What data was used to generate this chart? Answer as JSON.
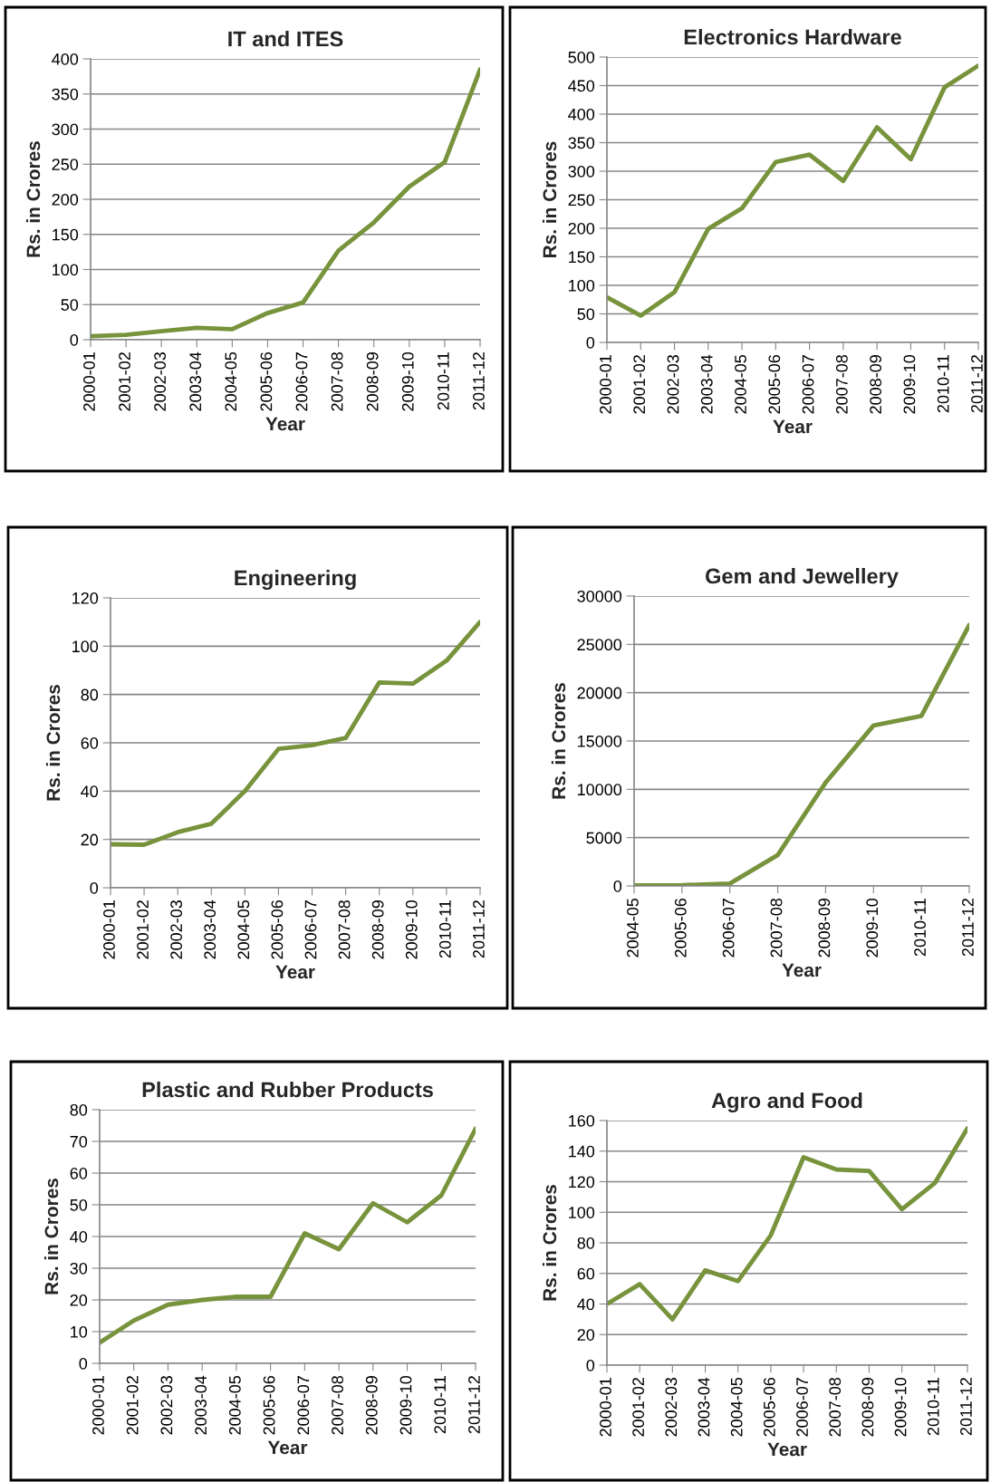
{
  "chart_data": [
    {
      "type": "line",
      "title": "IT and ITES",
      "xlabel": "Year",
      "ylabel": "Rs. in Crores",
      "categories": [
        "2000-01",
        "2001-02",
        "2002-03",
        "2003-04",
        "2004-05",
        "2005-06",
        "2006-07",
        "2007-08",
        "2008-09",
        "2009-10",
        "2010-11",
        "2011-12"
      ],
      "series": [
        {
          "color": "#77933c",
          "values": [
            5,
            7,
            12,
            17,
            15,
            38,
            53,
            127,
            167,
            218,
            253,
            385
          ]
        }
      ],
      "ylim": [
        0,
        400
      ],
      "yticks": [
        0,
        50,
        100,
        150,
        200,
        250,
        300,
        350,
        400
      ],
      "grid": "y",
      "legend": false,
      "marker": "none",
      "line_style": "solid"
    },
    {
      "type": "line",
      "title": "Electronics Hardware",
      "xlabel": "Year",
      "ylabel": "Rs. in Crores",
      "categories": [
        "2000-01",
        "2001-02",
        "2002-03",
        "2003-04",
        "2004-05",
        "2005-06",
        "2006-07",
        "2007-08",
        "2008-09",
        "2009-10",
        "2010-11",
        "2011-12"
      ],
      "series": [
        {
          "color": "#77933c",
          "values": [
            79,
            47,
            88,
            199,
            235,
            316,
            329,
            283,
            377,
            321,
            447,
            485
          ]
        }
      ],
      "ylim": [
        0,
        500
      ],
      "yticks": [
        0,
        50,
        100,
        150,
        200,
        250,
        300,
        350,
        400,
        450,
        500
      ],
      "grid": "y",
      "legend": false,
      "marker": "none",
      "line_style": "solid"
    },
    {
      "type": "line",
      "title": "Engineering",
      "xlabel": "Year",
      "ylabel": "Rs. in Crores",
      "categories": [
        "2000-01",
        "2001-02",
        "2002-03",
        "2003-04",
        "2004-05",
        "2005-06",
        "2006-07",
        "2007-08",
        "2008-09",
        "2009-10",
        "2010-11",
        "2011-12"
      ],
      "series": [
        {
          "color": "#77933c",
          "values": [
            18,
            17.8,
            23,
            26.5,
            40,
            57.5,
            59,
            62,
            85,
            84.5,
            94,
            110
          ]
        }
      ],
      "ylim": [
        0,
        120
      ],
      "yticks": [
        0,
        20,
        40,
        60,
        80,
        100,
        120
      ],
      "grid": "y",
      "legend": false,
      "marker": "none",
      "line_style": "solid"
    },
    {
      "type": "line",
      "title": "Gem and Jewellery",
      "xlabel": "Year",
      "ylabel": "Rs. in Crores",
      "categories": [
        "2004-05",
        "2005-06",
        "2006-07",
        "2007-08",
        "2008-09",
        "2009-10",
        "2010-11",
        "2011-12"
      ],
      "series": [
        {
          "color": "#77933c",
          "values": [
            50,
            80,
            250,
            3200,
            10700,
            16600,
            17600,
            27000
          ]
        }
      ],
      "ylim": [
        0,
        30000
      ],
      "yticks": [
        0,
        5000,
        10000,
        15000,
        20000,
        25000,
        30000
      ],
      "grid": "y",
      "legend": false,
      "marker": "none",
      "line_style": "solid"
    },
    {
      "type": "line",
      "title": "Plastic and Rubber Products",
      "xlabel": "Year",
      "ylabel": "Rs. in Crores",
      "categories": [
        "2000-01",
        "2001-02",
        "2002-03",
        "2003-04",
        "2004-05",
        "2005-06",
        "2006-07",
        "2007-08",
        "2008-09",
        "2009-10",
        "2010-11",
        "2011-12"
      ],
      "series": [
        {
          "color": "#77933c",
          "values": [
            6.5,
            13.5,
            18.5,
            20,
            21,
            21,
            41,
            36,
            50.5,
            44.5,
            53,
            74
          ]
        }
      ],
      "ylim": [
        0,
        80
      ],
      "yticks": [
        0,
        10,
        20,
        30,
        40,
        50,
        60,
        70,
        80
      ],
      "grid": "y",
      "legend": false,
      "marker": "none",
      "line_style": "solid"
    },
    {
      "type": "line",
      "title": "Agro and Food",
      "xlabel": "Year",
      "ylabel": "Rs. in Crores",
      "categories": [
        "2000-01",
        "2001-02",
        "2002-03",
        "2003-04",
        "2004-05",
        "2005-06",
        "2006-07",
        "2007-08",
        "2008-09",
        "2009-10",
        "2010-11",
        "2011-12"
      ],
      "series": [
        {
          "color": "#77933c",
          "values": [
            40,
            53,
            30,
            62,
            55,
            85,
            136,
            128,
            127,
            102,
            119,
            155
          ]
        }
      ],
      "ylim": [
        0,
        160
      ],
      "yticks": [
        0,
        20,
        40,
        60,
        80,
        100,
        120,
        140,
        160
      ],
      "grid": "y",
      "legend": false,
      "marker": "none",
      "line_style": "solid"
    }
  ]
}
